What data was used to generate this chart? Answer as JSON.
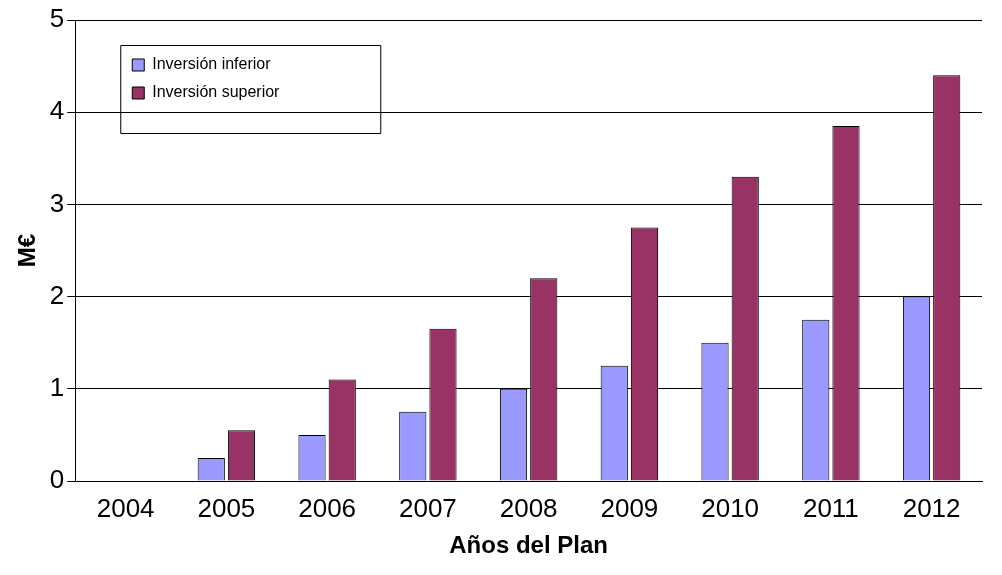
{
  "chart_data": {
    "type": "bar",
    "xlabel": "Años del Plan",
    "ylabel": "M€",
    "categories": [
      "2004",
      "2005",
      "2006",
      "2007",
      "2008",
      "2009",
      "2010",
      "2011",
      "2012"
    ],
    "series": [
      {
        "name": "Inversión inferior",
        "color": "#9999ff",
        "values": [
          0,
          0.25,
          0.5,
          0.75,
          1,
          1.25,
          1.5,
          1.75,
          2
        ]
      },
      {
        "name": "Inversión superior",
        "color": "#993366",
        "values": [
          0,
          0.55,
          1.1,
          1.65,
          2.2,
          2.75,
          3.3,
          3.85,
          4.4
        ]
      }
    ],
    "ylim": [
      0,
      5
    ],
    "yticks": [
      0,
      1,
      2,
      3,
      4,
      5
    ],
    "grid": "y",
    "legend": "top left"
  }
}
